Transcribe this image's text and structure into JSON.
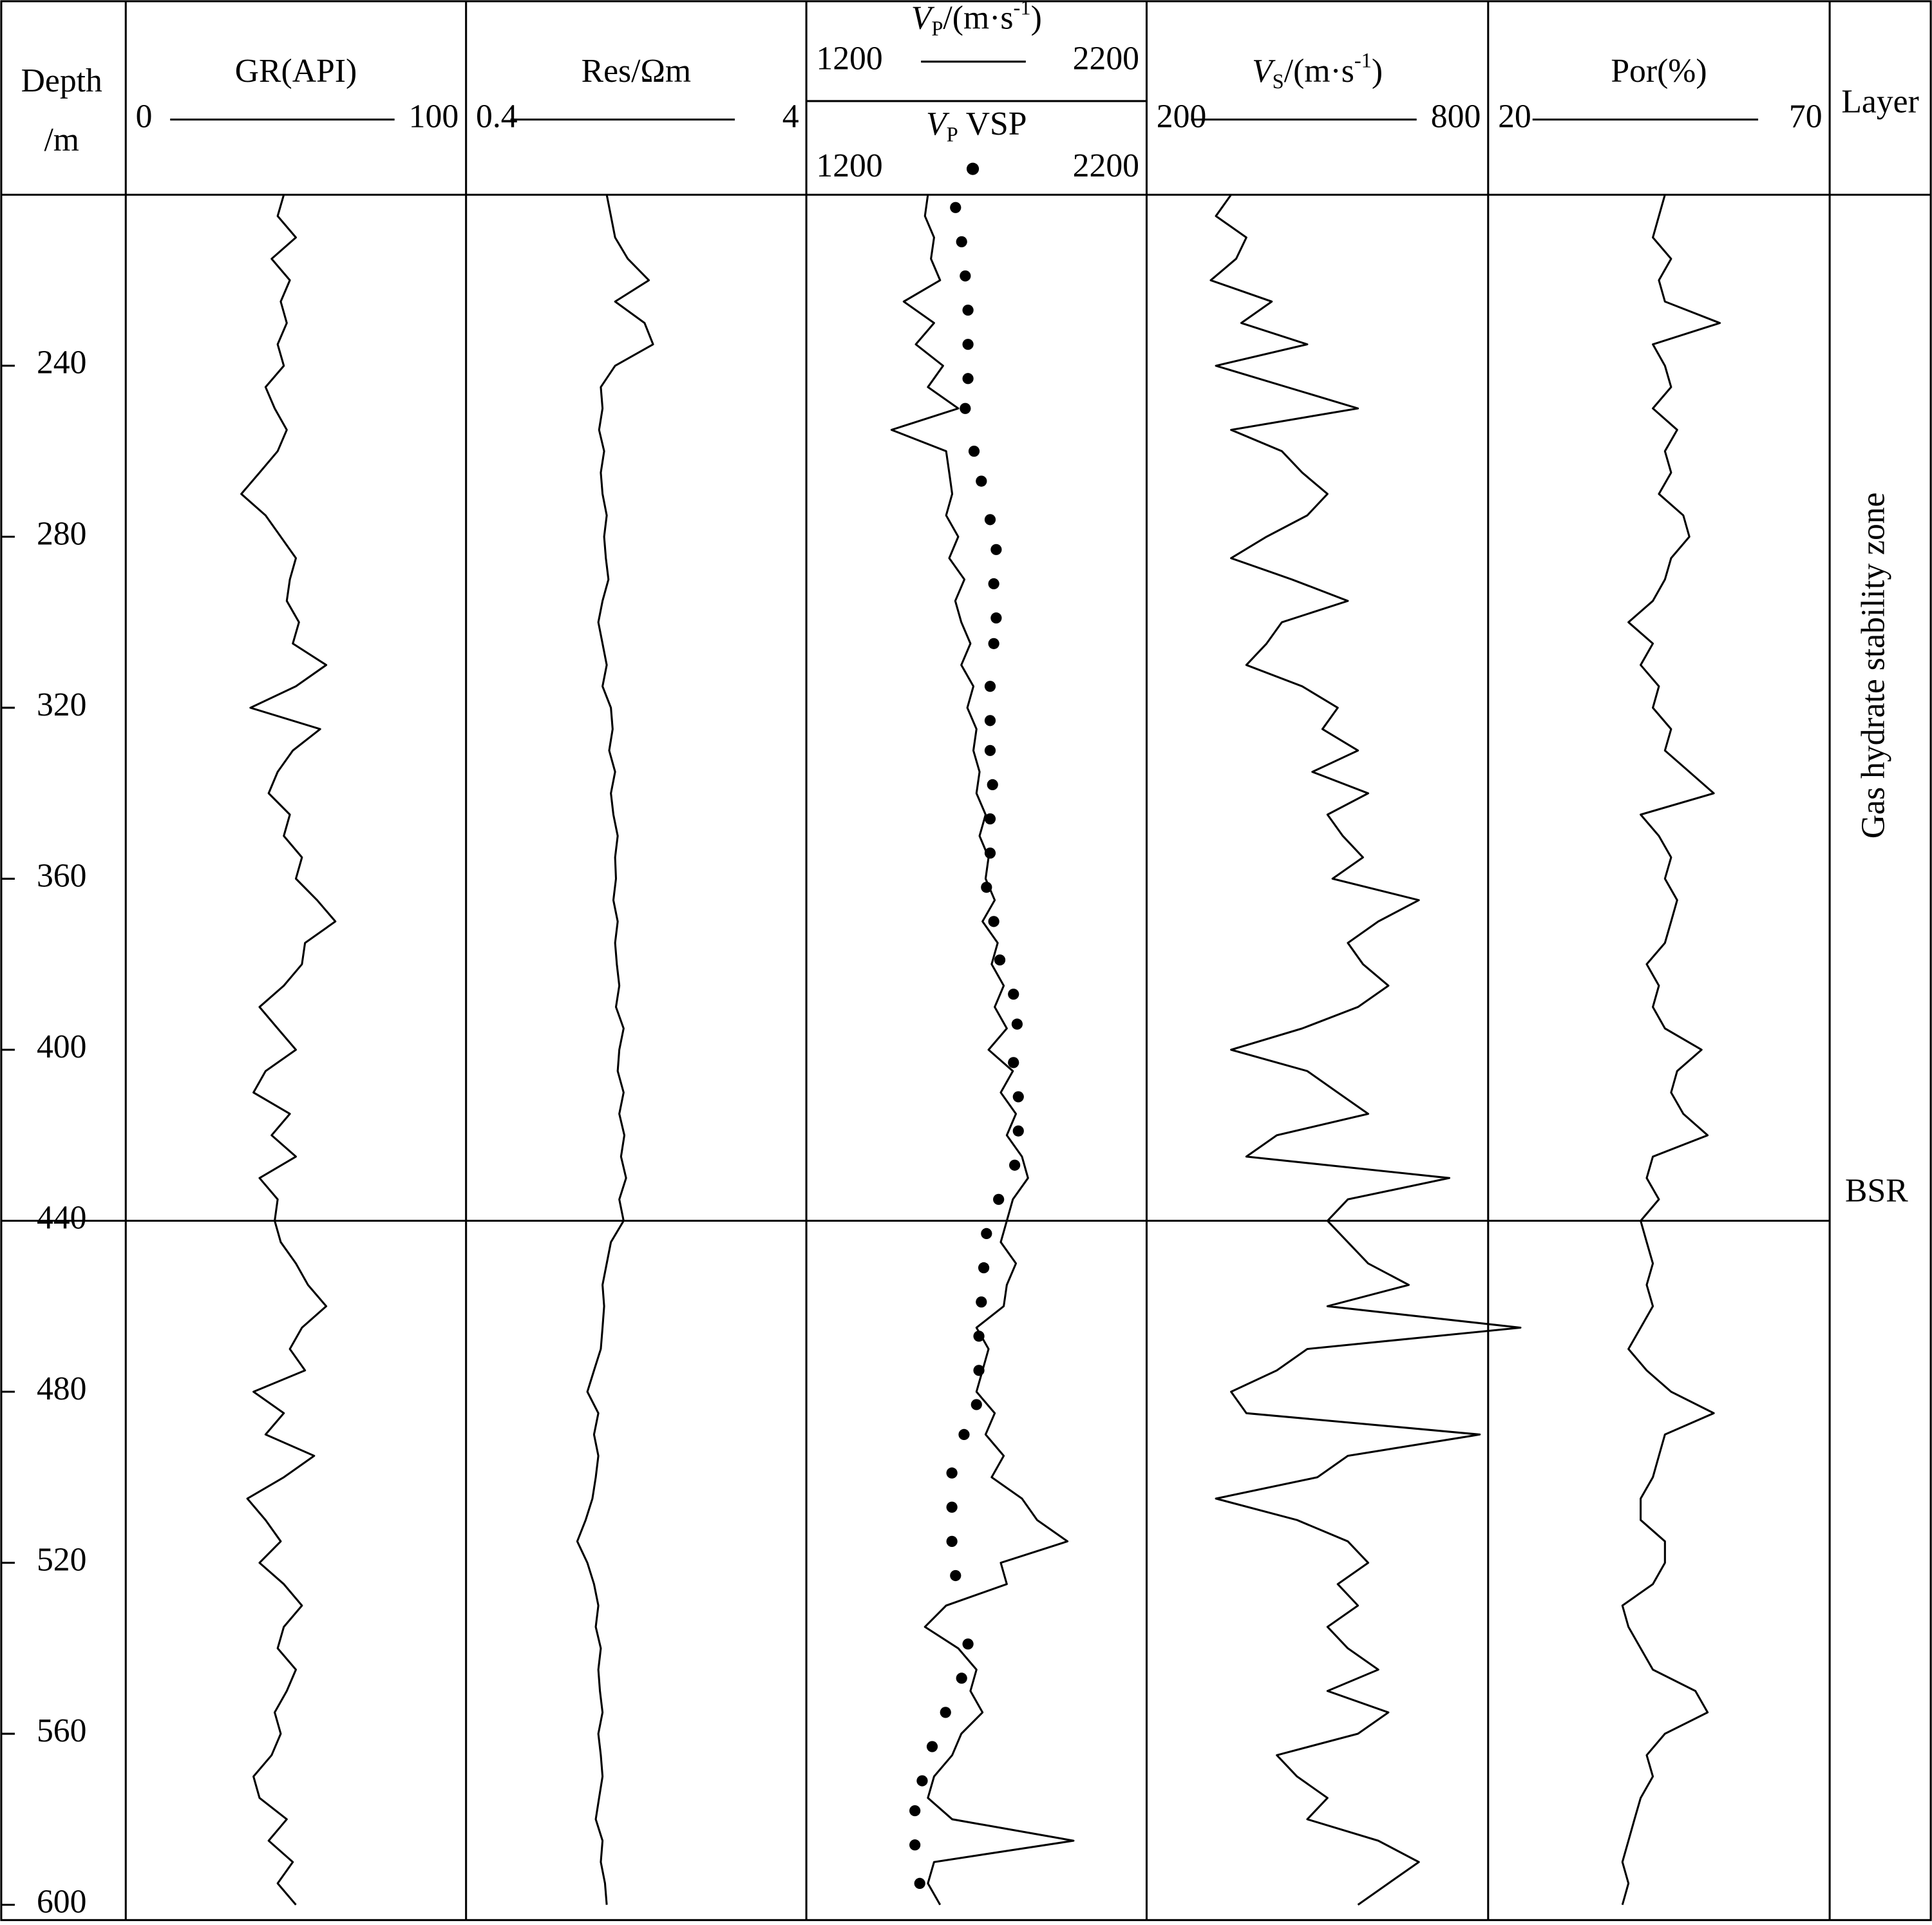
{
  "chart_data": {
    "type": "well-log",
    "depth_label": [
      "Depth",
      "/m"
    ],
    "layer_label": "Layer",
    "zone_label": "Gas hydrate stability zone",
    "bsr_label": "BSR",
    "bsr_depth": 440,
    "ylim": [
      200,
      603
    ],
    "yticks": [
      240,
      280,
      320,
      360,
      400,
      440,
      480,
      520,
      560,
      600
    ],
    "depth": [
      200,
      205,
      210,
      215,
      220,
      225,
      230,
      235,
      240,
      245,
      250,
      255,
      260,
      265,
      270,
      275,
      280,
      285,
      290,
      295,
      300,
      305,
      310,
      315,
      320,
      325,
      330,
      335,
      340,
      345,
      350,
      355,
      360,
      365,
      370,
      375,
      380,
      385,
      390,
      395,
      400,
      405,
      410,
      415,
      420,
      425,
      430,
      435,
      440,
      445,
      450,
      455,
      460,
      465,
      470,
      475,
      480,
      485,
      490,
      495,
      500,
      505,
      510,
      515,
      520,
      525,
      530,
      535,
      540,
      545,
      550,
      555,
      560,
      565,
      570,
      575,
      580,
      585,
      590,
      595,
      600
    ],
    "tracks": [
      {
        "label": [
          "GR(API)"
        ],
        "xlim": [
          0,
          100
        ],
        "xticks": [
          0,
          100
        ],
        "values": [
          46,
          44,
          50,
          42,
          48,
          45,
          47,
          44,
          46,
          40,
          43,
          47,
          44,
          38,
          32,
          40,
          45,
          50,
          48,
          47,
          51,
          49,
          60,
          50,
          35,
          58,
          49,
          44,
          41,
          48,
          46,
          52,
          50,
          57,
          63,
          53,
          52,
          46,
          38,
          44,
          50,
          40,
          36,
          48,
          42,
          50,
          38,
          44,
          43,
          45,
          50,
          54,
          60,
          52,
          48,
          53,
          36,
          46,
          40,
          56,
          46,
          34,
          40,
          45,
          38,
          46,
          52,
          46,
          44,
          50,
          47,
          43,
          45,
          42,
          36,
          38,
          47,
          41,
          49,
          44,
          50
        ]
      },
      {
        "label": [
          "Res/Ωm"
        ],
        "xlim": [
          0.4,
          4
        ],
        "xticks": [
          0.4,
          4
        ],
        "values": [
          1.85,
          1.9,
          1.95,
          2.1,
          2.35,
          1.95,
          2.3,
          2.4,
          1.95,
          1.78,
          1.8,
          1.76,
          1.82,
          1.78,
          1.8,
          1.85,
          1.82,
          1.84,
          1.87,
          1.8,
          1.75,
          1.8,
          1.85,
          1.8,
          1.9,
          1.92,
          1.88,
          1.95,
          1.9,
          1.93,
          1.98,
          1.95,
          1.96,
          1.93,
          1.98,
          1.95,
          1.97,
          2.0,
          1.96,
          2.05,
          2.0,
          1.98,
          2.05,
          2.0,
          2.06,
          2.02,
          2.08,
          2.0,
          2.05,
          1.9,
          1.85,
          1.8,
          1.82,
          1.8,
          1.78,
          1.7,
          1.62,
          1.75,
          1.7,
          1.75,
          1.72,
          1.68,
          1.6,
          1.5,
          1.62,
          1.7,
          1.75,
          1.72,
          1.78,
          1.75,
          1.77,
          1.8,
          1.75,
          1.78,
          1.8,
          1.76,
          1.72,
          1.8,
          1.78,
          1.83,
          1.85
        ]
      },
      {
        "label": [
          "V",
          "P",
          "/(m·s",
          "-1",
          ")"
        ],
        "xlim": [
          1200,
          2200
        ],
        "xticks": [
          1200,
          2200
        ],
        "values": [
          1540,
          1530,
          1560,
          1550,
          1580,
          1460,
          1560,
          1500,
          1590,
          1540,
          1640,
          1420,
          1600,
          1610,
          1620,
          1600,
          1640,
          1610,
          1660,
          1630,
          1650,
          1680,
          1650,
          1690,
          1670,
          1700,
          1690,
          1710,
          1700,
          1730,
          1710,
          1740,
          1730,
          1760,
          1720,
          1770,
          1750,
          1790,
          1760,
          1800,
          1740,
          1820,
          1780,
          1830,
          1800,
          1850,
          1870,
          1820,
          1800,
          1780,
          1830,
          1800,
          1790,
          1700,
          1740,
          1720,
          1700,
          1760,
          1730,
          1790,
          1750,
          1850,
          1900,
          2000,
          1780,
          1800,
          1600,
          1530,
          1640,
          1700,
          1680,
          1720,
          1650,
          1620,
          1560,
          1540,
          1620,
          2020,
          1560,
          1540,
          1580
        ],
        "vsp": {
          "label": [
            "V",
            "P",
            " VSP"
          ],
          "xticks": [
            1200,
            2200
          ],
          "depth": [
            203,
            211,
            219,
            227,
            235,
            243,
            250,
            260,
            267,
            276,
            283,
            291,
            299,
            305,
            315,
            323,
            330,
            338,
            346,
            354,
            362,
            370,
            379,
            387,
            394,
            403,
            411,
            419,
            427,
            435,
            443,
            451,
            459,
            467,
            475,
            483,
            490,
            499,
            507,
            515,
            523,
            539,
            547,
            555,
            563,
            571,
            578,
            586,
            595
          ],
          "values": [
            1631,
            1651,
            1663,
            1672,
            1672,
            1672,
            1663,
            1692,
            1716,
            1745,
            1765,
            1757,
            1765,
            1757,
            1745,
            1745,
            1745,
            1753,
            1745,
            1745,
            1733,
            1757,
            1777,
            1822,
            1834,
            1822,
            1838,
            1838,
            1826,
            1773,
            1733,
            1724,
            1716,
            1708,
            1708,
            1700,
            1659,
            1619,
            1619,
            1619,
            1631,
            1672,
            1651,
            1598,
            1554,
            1521,
            1497,
            1497,
            1513
          ]
        }
      },
      {
        "label": [
          "V",
          "S",
          "/(m·s",
          "-1",
          ")"
        ],
        "xlim": [
          200,
          800
        ],
        "xticks": [
          200,
          800
        ],
        "values": [
          330,
          300,
          360,
          340,
          290,
          410,
          350,
          480,
          300,
          440,
          580,
          330,
          430,
          470,
          520,
          480,
          400,
          330,
          450,
          560,
          430,
          400,
          360,
          470,
          540,
          510,
          580,
          490,
          600,
          520,
          550,
          590,
          530,
          700,
          620,
          560,
          590,
          640,
          580,
          470,
          330,
          480,
          540,
          600,
          420,
          360,
          760,
          560,
          520,
          560,
          600,
          680,
          520,
          900,
          480,
          420,
          330,
          360,
          820,
          560,
          500,
          300,
          460,
          560,
          600,
          540,
          580,
          520,
          560,
          620,
          520,
          640,
          580,
          420,
          460,
          520,
          480,
          620,
          700,
          640,
          580
        ]
      },
      {
        "label": [
          "Por(%)"
        ],
        "xlim": [
          20,
          70
        ],
        "xticks": [
          20,
          70
        ],
        "values": [
          46,
          45,
          44,
          47,
          45,
          46,
          55,
          44,
          46,
          47,
          44,
          48,
          46,
          47,
          45,
          49,
          50,
          47,
          46,
          44,
          40,
          44,
          42,
          45,
          44,
          47,
          46,
          50,
          54,
          42,
          45,
          47,
          46,
          48,
          47,
          46,
          43,
          45,
          44,
          46,
          52,
          48,
          47,
          49,
          53,
          44,
          43,
          45,
          42,
          43,
          44,
          43,
          44,
          42,
          40,
          43,
          47,
          54,
          46,
          45,
          44,
          42,
          42,
          46,
          46,
          44,
          39,
          40,
          42,
          44,
          51,
          53,
          46,
          43,
          44,
          42,
          41,
          40,
          39,
          40,
          39
        ]
      }
    ]
  }
}
